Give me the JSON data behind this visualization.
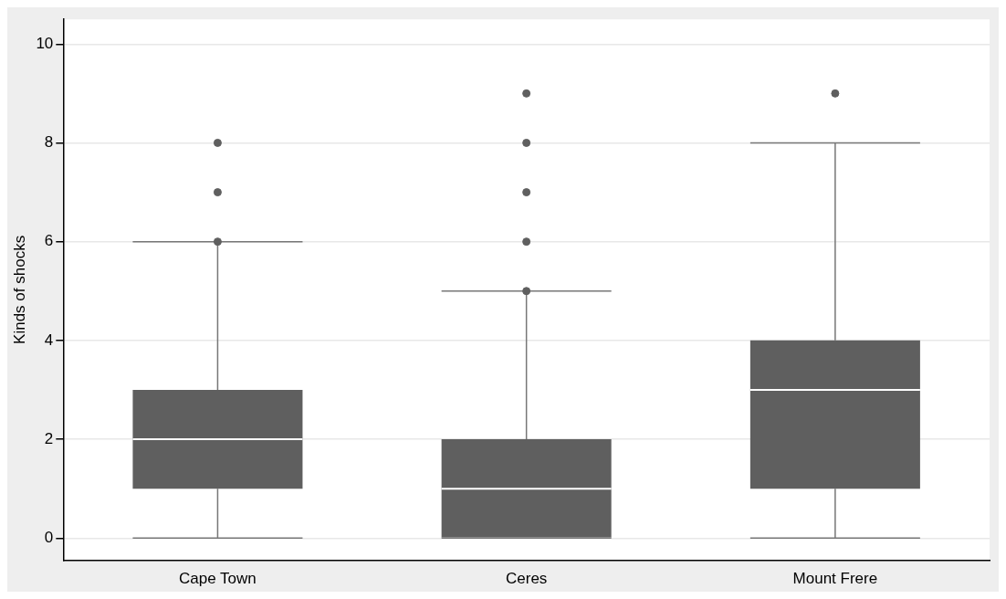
{
  "chart_data": {
    "type": "box",
    "ylabel": "Kinds of shocks",
    "categories": [
      "Cape Town",
      "Ceres",
      "Mount Frere"
    ],
    "color": "#5f5f5f",
    "ylim": [
      -0.45,
      10.5
    ],
    "yticks": [
      0,
      2,
      4,
      6,
      8,
      10
    ],
    "grid": "y",
    "legend": false,
    "boxes": [
      {
        "low": 0,
        "q1": 1,
        "median": 2,
        "q3": 3,
        "high": 6,
        "outliers": [
          6,
          7,
          8
        ]
      },
      {
        "low": 0,
        "q1": 0,
        "median": 1,
        "q3": 2,
        "high": 5,
        "outliers": [
          5,
          6,
          7,
          8,
          9
        ]
      },
      {
        "low": 0,
        "q1": 1,
        "median": 3,
        "q3": 4,
        "high": 8,
        "outliers": [
          9
        ]
      }
    ]
  }
}
